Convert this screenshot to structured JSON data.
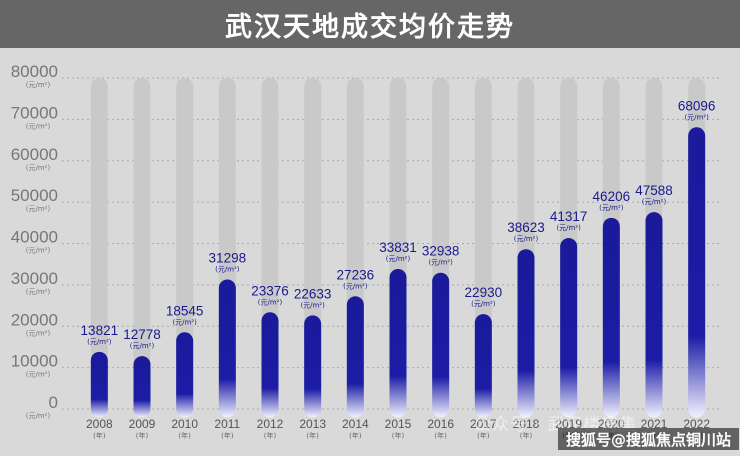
{
  "chart_data": {
    "type": "bar",
    "title": "武汉天地成交均价走势",
    "categories": [
      "2008",
      "2009",
      "2010",
      "2011",
      "2012",
      "2013",
      "2014",
      "2015",
      "2016",
      "2017",
      "2018",
      "2019",
      "2020",
      "2021",
      "2022"
    ],
    "category_unit": "(年)",
    "values": [
      13821,
      12778,
      18545,
      31298,
      23376,
      22633,
      27236,
      33831,
      32938,
      22930,
      38623,
      41317,
      46206,
      47588,
      68096
    ],
    "value_unit": "(元/m²)",
    "ylim": [
      0,
      80000
    ],
    "y_ticks": [
      0,
      10000,
      20000,
      30000,
      40000,
      50000,
      60000,
      70000,
      80000
    ],
    "y_tick_labels": [
      "0",
      "10000",
      "20000",
      "30000",
      "40000",
      "50000",
      "60000",
      "70000",
      "80000"
    ],
    "grid": "dotted horizontal",
    "colors": {
      "bar": "#1a1a9a",
      "track": "#c9c9c9",
      "title_bg": "#666666"
    }
  },
  "watermark": "公众号 · 武汉楼房集",
  "source_tag": "搜狐号@搜狐焦点铜川站"
}
